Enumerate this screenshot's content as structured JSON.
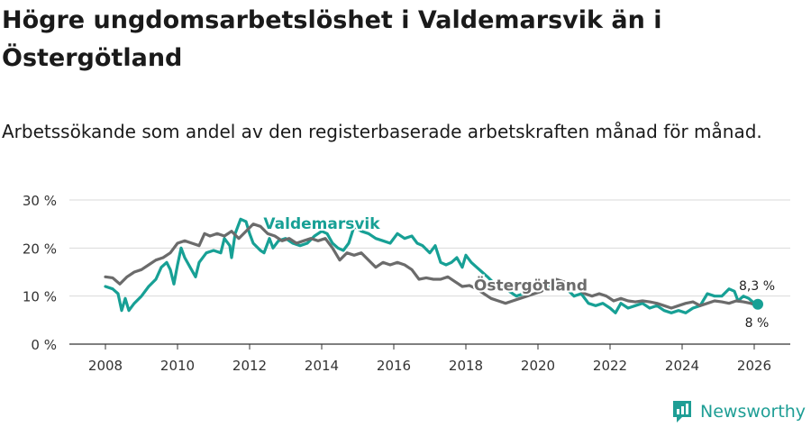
{
  "title": "Högre ungdomsarbetslöshet i Valdemarsvik än i Östergötland",
  "subtitle": "Arbetssökande som andel av den registerbaserade arbetskraften månad för månad.",
  "brand": {
    "name": "Newsworthy",
    "icon": "newsworthy-logo-icon"
  },
  "colors": {
    "valdemarsvik": "#17a095",
    "ostergotland": "#6b6b6b",
    "grid": "#d9d9d9",
    "axis": "#333333"
  },
  "chart_data": {
    "type": "line",
    "title": "Högre ungdomsarbetslöshet i Valdemarsvik än i Östergötland",
    "xlabel": "",
    "ylabel": "",
    "xlim": [
      2007,
      2027
    ],
    "ylim": [
      0,
      30
    ],
    "x_ticks": [
      2008,
      2010,
      2012,
      2014,
      2016,
      2018,
      2020,
      2022,
      2024,
      2026
    ],
    "y_ticks": [
      {
        "value": 0,
        "label": "0 %"
      },
      {
        "value": 10,
        "label": "10 %"
      },
      {
        "value": 20,
        "label": "20 %"
      },
      {
        "value": 30,
        "label": "30 %"
      }
    ],
    "grid": true,
    "series": [
      {
        "name": "Valdemarsvik",
        "label_at": [
          2014.0,
          24.0
        ],
        "end_label": "8,3 %",
        "points": [
          [
            2008.0,
            12.0
          ],
          [
            2008.2,
            11.5
          ],
          [
            2008.35,
            10.5
          ],
          [
            2008.45,
            7.0
          ],
          [
            2008.55,
            9.5
          ],
          [
            2008.65,
            7.0
          ],
          [
            2008.8,
            8.5
          ],
          [
            2009.0,
            10.0
          ],
          [
            2009.2,
            12.0
          ],
          [
            2009.4,
            13.5
          ],
          [
            2009.55,
            16.0
          ],
          [
            2009.7,
            17.0
          ],
          [
            2009.8,
            15.5
          ],
          [
            2009.9,
            12.5
          ],
          [
            2010.0,
            16.5
          ],
          [
            2010.1,
            20.0
          ],
          [
            2010.2,
            18.0
          ],
          [
            2010.35,
            16.0
          ],
          [
            2010.5,
            14.0
          ],
          [
            2010.6,
            17.0
          ],
          [
            2010.8,
            19.0
          ],
          [
            2011.0,
            19.5
          ],
          [
            2011.2,
            19.0
          ],
          [
            2011.3,
            22.0
          ],
          [
            2011.45,
            20.5
          ],
          [
            2011.5,
            18.0
          ],
          [
            2011.6,
            23.0
          ],
          [
            2011.75,
            26.0
          ],
          [
            2011.9,
            25.5
          ],
          [
            2012.0,
            23.0
          ],
          [
            2012.1,
            21.0
          ],
          [
            2012.3,
            19.5
          ],
          [
            2012.4,
            19.0
          ],
          [
            2012.55,
            22.0
          ],
          [
            2012.65,
            20.0
          ],
          [
            2012.8,
            21.5
          ],
          [
            2013.0,
            22.0
          ],
          [
            2013.2,
            21.0
          ],
          [
            2013.4,
            20.5
          ],
          [
            2013.6,
            21.0
          ],
          [
            2013.8,
            22.5
          ],
          [
            2014.0,
            23.5
          ],
          [
            2014.15,
            23.0
          ],
          [
            2014.3,
            21.0
          ],
          [
            2014.45,
            20.0
          ],
          [
            2014.6,
            19.5
          ],
          [
            2014.75,
            21.0
          ],
          [
            2014.9,
            24.5
          ],
          [
            2015.1,
            23.5
          ],
          [
            2015.3,
            23.0
          ],
          [
            2015.5,
            22.0
          ],
          [
            2015.7,
            21.5
          ],
          [
            2015.9,
            21.0
          ],
          [
            2016.1,
            23.0
          ],
          [
            2016.3,
            22.0
          ],
          [
            2016.5,
            22.5
          ],
          [
            2016.65,
            21.0
          ],
          [
            2016.8,
            20.5
          ],
          [
            2017.0,
            19.0
          ],
          [
            2017.15,
            20.5
          ],
          [
            2017.3,
            17.0
          ],
          [
            2017.45,
            16.5
          ],
          [
            2017.6,
            17.0
          ],
          [
            2017.75,
            18.0
          ],
          [
            2017.9,
            16.0
          ],
          [
            2018.0,
            18.5
          ],
          [
            2018.15,
            17.0
          ],
          [
            2018.3,
            16.0
          ],
          [
            2018.45,
            15.0
          ],
          [
            2018.6,
            14.0
          ],
          [
            2018.8,
            12.5
          ],
          [
            2019.0,
            12.0
          ],
          [
            2019.2,
            11.0
          ],
          [
            2019.4,
            10.0
          ],
          [
            2019.6,
            10.5
          ],
          [
            2019.8,
            11.5
          ],
          [
            2020.0,
            13.0
          ],
          [
            2020.2,
            12.5
          ],
          [
            2020.4,
            12.0
          ],
          [
            2020.6,
            13.0
          ],
          [
            2020.8,
            11.5
          ],
          [
            2021.0,
            10.0
          ],
          [
            2021.2,
            10.5
          ],
          [
            2021.4,
            8.5
          ],
          [
            2021.6,
            8.0
          ],
          [
            2021.8,
            8.5
          ],
          [
            2022.0,
            7.5
          ],
          [
            2022.15,
            6.5
          ],
          [
            2022.3,
            8.5
          ],
          [
            2022.5,
            7.5
          ],
          [
            2022.7,
            8.0
          ],
          [
            2022.9,
            8.5
          ],
          [
            2023.1,
            7.5
          ],
          [
            2023.3,
            8.0
          ],
          [
            2023.5,
            7.0
          ],
          [
            2023.7,
            6.5
          ],
          [
            2023.9,
            7.0
          ],
          [
            2024.1,
            6.5
          ],
          [
            2024.3,
            7.5
          ],
          [
            2024.5,
            8.0
          ],
          [
            2024.7,
            10.5
          ],
          [
            2024.9,
            10.0
          ],
          [
            2025.1,
            10.0
          ],
          [
            2025.3,
            11.5
          ],
          [
            2025.45,
            11.0
          ],
          [
            2025.55,
            9.0
          ],
          [
            2025.7,
            10.0
          ],
          [
            2025.85,
            9.5
          ],
          [
            2026.0,
            8.5
          ],
          [
            2026.1,
            8.3
          ]
        ]
      },
      {
        "name": "Östergötland",
        "label_at": [
          2019.8,
          11.2
        ],
        "end_label": "8 %",
        "points": [
          [
            2008.0,
            14.0
          ],
          [
            2008.2,
            13.8
          ],
          [
            2008.4,
            12.5
          ],
          [
            2008.6,
            14.0
          ],
          [
            2008.8,
            15.0
          ],
          [
            2009.0,
            15.5
          ],
          [
            2009.2,
            16.5
          ],
          [
            2009.4,
            17.5
          ],
          [
            2009.6,
            18.0
          ],
          [
            2009.8,
            19.0
          ],
          [
            2010.0,
            21.0
          ],
          [
            2010.2,
            21.5
          ],
          [
            2010.4,
            21.0
          ],
          [
            2010.6,
            20.5
          ],
          [
            2010.75,
            23.0
          ],
          [
            2010.9,
            22.5
          ],
          [
            2011.1,
            23.0
          ],
          [
            2011.3,
            22.5
          ],
          [
            2011.5,
            23.5
          ],
          [
            2011.7,
            22.0
          ],
          [
            2011.9,
            23.5
          ],
          [
            2012.1,
            25.0
          ],
          [
            2012.3,
            24.5
          ],
          [
            2012.5,
            23.0
          ],
          [
            2012.7,
            22.5
          ],
          [
            2012.9,
            21.5
          ],
          [
            2013.1,
            22.0
          ],
          [
            2013.3,
            21.0
          ],
          [
            2013.5,
            21.5
          ],
          [
            2013.7,
            22.0
          ],
          [
            2013.9,
            21.5
          ],
          [
            2014.1,
            22.0
          ],
          [
            2014.3,
            20.0
          ],
          [
            2014.5,
            17.5
          ],
          [
            2014.7,
            19.0
          ],
          [
            2014.9,
            18.5
          ],
          [
            2015.1,
            19.0
          ],
          [
            2015.3,
            17.5
          ],
          [
            2015.5,
            16.0
          ],
          [
            2015.7,
            17.0
          ],
          [
            2015.9,
            16.5
          ],
          [
            2016.1,
            17.0
          ],
          [
            2016.3,
            16.5
          ],
          [
            2016.5,
            15.5
          ],
          [
            2016.7,
            13.5
          ],
          [
            2016.9,
            13.8
          ],
          [
            2017.1,
            13.5
          ],
          [
            2017.3,
            13.5
          ],
          [
            2017.5,
            14.0
          ],
          [
            2017.7,
            13.0
          ],
          [
            2017.9,
            12.0
          ],
          [
            2018.1,
            12.2
          ],
          [
            2018.3,
            11.5
          ],
          [
            2018.5,
            10.5
          ],
          [
            2018.7,
            9.5
          ],
          [
            2018.9,
            9.0
          ],
          [
            2019.1,
            8.5
          ],
          [
            2019.3,
            9.0
          ],
          [
            2019.5,
            9.5
          ],
          [
            2019.7,
            10.0
          ],
          [
            2019.9,
            10.5
          ],
          [
            2020.1,
            11.0
          ],
          [
            2020.3,
            12.5
          ],
          [
            2020.5,
            13.5
          ],
          [
            2020.7,
            13.0
          ],
          [
            2020.9,
            12.5
          ],
          [
            2021.1,
            11.5
          ],
          [
            2021.3,
            10.5
          ],
          [
            2021.5,
            10.0
          ],
          [
            2021.7,
            10.5
          ],
          [
            2021.9,
            10.0
          ],
          [
            2022.1,
            9.0
          ],
          [
            2022.3,
            9.5
          ],
          [
            2022.5,
            9.0
          ],
          [
            2022.7,
            8.8
          ],
          [
            2022.9,
            9.0
          ],
          [
            2023.1,
            8.8
          ],
          [
            2023.3,
            8.5
          ],
          [
            2023.5,
            8.0
          ],
          [
            2023.7,
            7.5
          ],
          [
            2023.9,
            8.0
          ],
          [
            2024.1,
            8.5
          ],
          [
            2024.3,
            8.8
          ],
          [
            2024.5,
            8.0
          ],
          [
            2024.7,
            8.5
          ],
          [
            2024.9,
            9.0
          ],
          [
            2025.1,
            8.8
          ],
          [
            2025.3,
            8.5
          ],
          [
            2025.5,
            9.0
          ],
          [
            2025.7,
            8.8
          ],
          [
            2025.9,
            8.5
          ],
          [
            2026.1,
            8.0
          ]
        ]
      }
    ]
  }
}
